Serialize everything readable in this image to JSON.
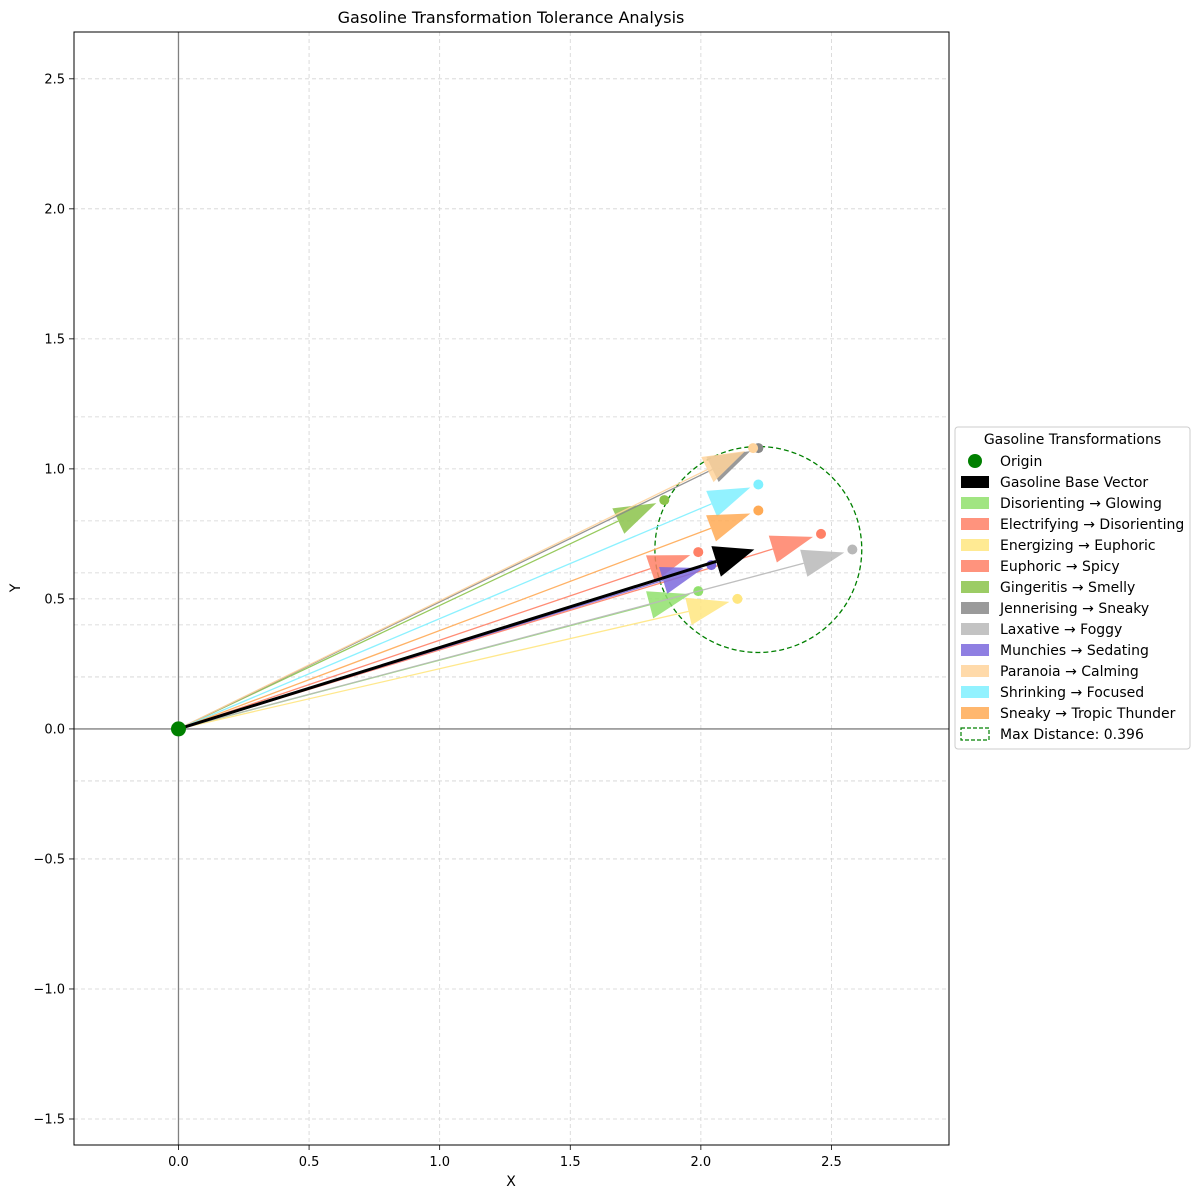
{
  "chart_data": {
    "type": "vector-arrows",
    "title": "Gasoline Transformation Tolerance Analysis",
    "xlabel": "X",
    "ylabel": "Y",
    "xlim": [
      -0.4,
      2.95
    ],
    "ylim": [
      -1.6,
      2.68
    ],
    "x_ticks": [
      0.0,
      0.5,
      1.0,
      1.5,
      2.0,
      2.5
    ],
    "x_tick_labels": [
      "0.0",
      "0.5",
      "1.0",
      "1.5",
      "2.0",
      "2.5"
    ],
    "y_ticks": [
      -1.5,
      -1.0,
      -0.5,
      0.0,
      0.5,
      1.0,
      1.5,
      2.0,
      2.5
    ],
    "y_tick_labels": [
      "−1.5",
      "−1.0",
      "−0.5",
      "0.0",
      "0.5",
      "1.0",
      "1.5",
      "2.0",
      "2.5"
    ],
    "grid": true,
    "extra_hgrid": [
      -0.2,
      0.2,
      0.4,
      0.6,
      0.8,
      1.2
    ],
    "legend_title": "Gasoline Transformations",
    "legend_position": "right",
    "origin": {
      "label": "Origin",
      "x": 0.0,
      "y": 0.0,
      "color": "#008000"
    },
    "base_vector": {
      "label": "Gasoline Base Vector",
      "x": 2.22,
      "y": 0.69,
      "color": "#000000"
    },
    "transformations": [
      {
        "name": "Disorienting → Glowing",
        "x": 1.99,
        "y": 0.53,
        "color": "#90e06c"
      },
      {
        "name": "Electrifying → Disorienting",
        "x": 2.46,
        "y": 0.75,
        "color": "#ff8066"
      },
      {
        "name": "Energizing → Euphoric",
        "x": 2.14,
        "y": 0.5,
        "color": "#ffe680"
      },
      {
        "name": "Euphoric → Spicy",
        "x": 1.99,
        "y": 0.68,
        "color": "#ff8066"
      },
      {
        "name": "Gingeritis → Smelly",
        "x": 1.86,
        "y": 0.88,
        "color": "#8bc34a"
      },
      {
        "name": "Jennerising → Sneaky",
        "x": 2.22,
        "y": 1.08,
        "color": "#888888"
      },
      {
        "name": "Laxative → Foggy",
        "x": 2.58,
        "y": 0.69,
        "color": "#b8b8b8"
      },
      {
        "name": "Munchies → Sedating",
        "x": 2.04,
        "y": 0.63,
        "color": "#7b68dd"
      },
      {
        "name": "Paranoia → Calming",
        "x": 2.2,
        "y": 1.08,
        "color": "#ffd39b"
      },
      {
        "name": "Shrinking → Focused",
        "x": 2.22,
        "y": 0.94,
        "color": "#7ff0ff"
      },
      {
        "name": "Sneaky → Tropic Thunder",
        "x": 2.22,
        "y": 0.84,
        "color": "#ffaa55"
      }
    ],
    "max_distance": {
      "label": "Max Distance: 0.396",
      "value": 0.396,
      "center_x": 2.22,
      "center_y": 0.69,
      "color": "#008000"
    }
  }
}
